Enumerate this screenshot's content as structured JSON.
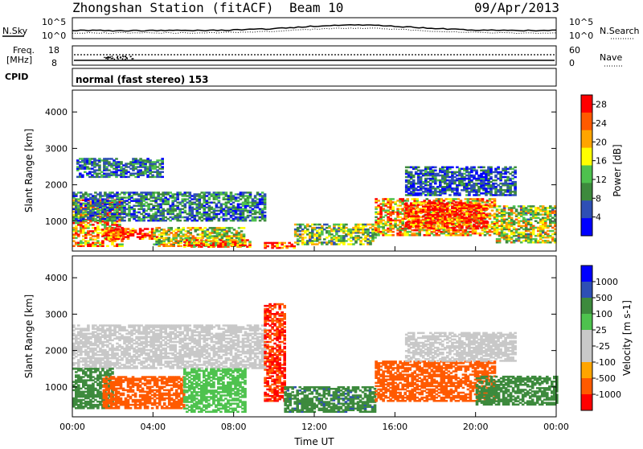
{
  "header": {
    "station": "Zhongshan Station (fitACF)",
    "beam": "Beam 10",
    "date": "09/Apr/2013"
  },
  "panels": {
    "nsky_label": "N.Sky",
    "nsky_ticks": [
      "10^5",
      "10^0"
    ],
    "nsearch_label": "N.Search",
    "nsearch_ticks": [
      "10^5",
      "10^0"
    ],
    "freq_label_1": "Freq.",
    "freq_label_2": "[MHz]",
    "freq_ticks": [
      "18",
      "8"
    ],
    "nave_label": "Nave",
    "nave_ticks": [
      "60",
      "0"
    ],
    "cpid_label": "CPID",
    "cpid_value": "normal (fast stereo) 153"
  },
  "colors": {
    "power": [
      "#0000ff",
      "#2e4fb5",
      "#3d8a3d",
      "#4ec24e",
      "#ffff00",
      "#ffa500",
      "#ff5a00",
      "#ff0000"
    ],
    "velocity": [
      "#ff0000",
      "#ff5a00",
      "#ffa500",
      "#c8c8c8",
      "#c8c8c8",
      "#4ec24e",
      "#3d8a3d",
      "#2e4fb5",
      "#0000ff"
    ]
  },
  "chart_data": [
    {
      "type": "heatmap",
      "name": "power",
      "ylabel": "Slant Range [km]",
      "ylim": [
        180,
        4600
      ],
      "yticks": [
        "1000",
        "2000",
        "3000",
        "4000"
      ],
      "xlim": [
        0,
        24
      ],
      "colorbar_label": "Power [dB]",
      "colorbar_ticks": [
        "4",
        "8",
        "12",
        "16",
        "20",
        "24",
        "28"
      ],
      "colorbar_range": [
        0,
        30
      ],
      "regions": [
        {
          "t0": 0,
          "t1": 2.5,
          "r0": 300,
          "r1": 1600,
          "value": 22
        },
        {
          "t0": 0,
          "t1": 9.5,
          "r0": 1000,
          "r1": 1800,
          "value": 8
        },
        {
          "t0": 1.5,
          "t1": 4.2,
          "r0": 500,
          "r1": 800,
          "value": 27
        },
        {
          "t0": 4.0,
          "t1": 8.5,
          "r0": 300,
          "r1": 800,
          "value": 16
        },
        {
          "t0": 5.5,
          "t1": 8.8,
          "r0": 280,
          "r1": 500,
          "value": 24
        },
        {
          "t0": 9.5,
          "t1": 11.0,
          "r0": 250,
          "r1": 400,
          "value": 28
        },
        {
          "t0": 11.0,
          "t1": 15.0,
          "r0": 350,
          "r1": 900,
          "value": 14
        },
        {
          "t0": 15.0,
          "t1": 21.0,
          "r0": 600,
          "r1": 1600,
          "value": 20
        },
        {
          "t0": 16.5,
          "t1": 20.5,
          "r0": 800,
          "r1": 1500,
          "value": 27
        },
        {
          "t0": 21.0,
          "t1": 24.0,
          "r0": 400,
          "r1": 1400,
          "value": 16
        },
        {
          "t0": 0.2,
          "t1": 4.5,
          "r0": 2200,
          "r1": 2700,
          "value": 8
        },
        {
          "t0": 16.5,
          "t1": 22.0,
          "r0": 1700,
          "r1": 2500,
          "value": 6
        }
      ]
    },
    {
      "type": "heatmap",
      "name": "velocity",
      "ylabel": "Slant Range [km]",
      "ylim": [
        180,
        4600
      ],
      "yticks": [
        "1000",
        "2000",
        "3000",
        "4000"
      ],
      "xlabel": "Time UT",
      "xlim": [
        0,
        24
      ],
      "xticks": [
        "00:00",
        "04:00",
        "08:00",
        "12:00",
        "16:00",
        "20:00",
        "00:00"
      ],
      "colorbar_label": "Velocity [m s-1]",
      "colorbar_ticks": [
        "1000",
        "500",
        "100",
        "25",
        "-25",
        "-100",
        "-500",
        "-1000"
      ],
      "regions": [
        {
          "t0": 0,
          "t1": 9.5,
          "r0": 1500,
          "r1": 2700,
          "value": 0
        },
        {
          "t0": 0,
          "t1": 2.0,
          "r0": 400,
          "r1": 1500,
          "value": 300
        },
        {
          "t0": 1.5,
          "t1": 5.5,
          "r0": 400,
          "r1": 1300,
          "value": -200
        },
        {
          "t0": 5.5,
          "t1": 8.5,
          "r0": 300,
          "r1": 1500,
          "value": 50
        },
        {
          "t0": 9.5,
          "t1": 10.5,
          "r0": 600,
          "r1": 3300,
          "value": -500
        },
        {
          "t0": 10.5,
          "t1": 15.0,
          "r0": 300,
          "r1": 1000,
          "value": 400
        },
        {
          "t0": 15.0,
          "t1": 21.0,
          "r0": 600,
          "r1": 1700,
          "value": -250
        },
        {
          "t0": 20.0,
          "t1": 24.0,
          "r0": 500,
          "r1": 1300,
          "value": 200
        },
        {
          "t0": 16.5,
          "t1": 22.0,
          "r0": 1700,
          "r1": 2500,
          "value": 0
        }
      ]
    }
  ]
}
